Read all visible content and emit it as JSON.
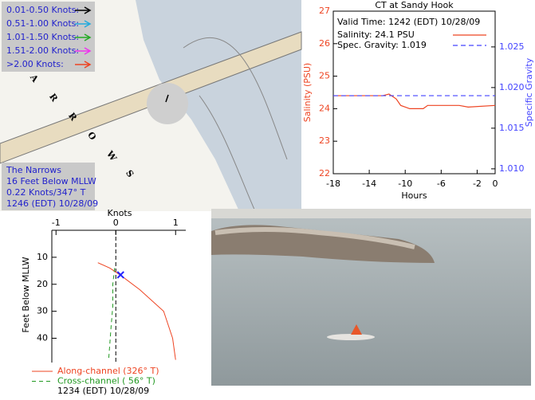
{
  "map": {
    "legend": [
      {
        "label": "0.01-0.50 Knots:",
        "color": "#000000"
      },
      {
        "label": "0.51-1.00 Knots:",
        "color": "#22aadd"
      },
      {
        "label": "1.01-1.50 Knots:",
        "color": "#22aa22"
      },
      {
        "label": "1.51-2.00 Knots:",
        "color": "#ee33ee"
      },
      {
        "label": ">2.00 Knots:",
        "color": "#ee4422"
      }
    ],
    "letters": [
      "A",
      "R",
      "R",
      "O",
      "W",
      "S"
    ],
    "info": [
      "The Narrows",
      "16 Feet Below MLLW",
      "0.22 Knots/347° T",
      "1246 (EDT) 10/28/09"
    ]
  },
  "chart_data": [
    {
      "type": "line",
      "title": "CT at Sandy Hook",
      "annotation": "Valid Time: 1242 (EDT) 10/28/09",
      "x_label": "Hours",
      "y_label": "Salinity (PSU)",
      "y2_label": "Specific Gravity",
      "x": [
        -18,
        -12.5,
        -11.8,
        -11,
        -10.5,
        -9.5,
        -8,
        -7.5,
        -4,
        -3,
        0
      ],
      "xlim": [
        -18,
        0
      ],
      "xticks": [
        -18,
        -14,
        -10,
        -6,
        -2,
        0
      ],
      "ylim": [
        22,
        27
      ],
      "yticks": [
        22,
        23,
        24,
        25,
        26,
        27
      ],
      "y2lim": [
        1.0094,
        1.0294
      ],
      "y2ticks": [
        {
          "value": 1.01,
          "label": "1.010"
        },
        1.015,
        {
          "value": 1.02,
          "label": "1.020"
        },
        1.025
      ],
      "series": [
        {
          "name": "Salinity: 24.1 PSU",
          "color": "#ee4422",
          "values": [
            24.4,
            24.4,
            24.45,
            24.3,
            24.1,
            24.0,
            24.0,
            24.1,
            24.1,
            24.05,
            24.1
          ]
        },
        {
          "name": "Spec. Gravity: 1.019",
          "color": "#4444ff",
          "dashed": true,
          "axis": "y2",
          "values": [
            1.019,
            1.019,
            1.019,
            1.019,
            1.019,
            1.019,
            1.019,
            1.019,
            1.019,
            1.019,
            1.019
          ]
        }
      ]
    },
    {
      "type": "profile",
      "x_label": "Knots",
      "y_label": "Feet Below MLLW",
      "footer": "1234 (EDT) 10/28/09",
      "xlim": [
        -1.07,
        1.17
      ],
      "xticks": [
        -1,
        0,
        1
      ],
      "ylim": [
        0,
        49
      ],
      "yticks": [
        10,
        20,
        30,
        40
      ],
      "series": [
        {
          "name": "Along-channel (326° T)",
          "color": "#ee4422",
          "x": [
            -0.3,
            -0.1,
            0.1,
            0.4,
            0.8,
            0.95,
            1.0
          ],
          "values": [
            12,
            14,
            17,
            22,
            30,
            40,
            48
          ]
        },
        {
          "name": "Cross-channel ( 56° T)",
          "color": "#229922",
          "dashed": true,
          "x": [
            -0.02,
            -0.05,
            -0.05,
            -0.08,
            -0.1,
            -0.12
          ],
          "values": [
            14,
            20,
            28,
            36,
            42,
            48
          ]
        }
      ],
      "marker": {
        "x": 0.08,
        "value": 16.5,
        "color": "#2222ff"
      }
    }
  ]
}
